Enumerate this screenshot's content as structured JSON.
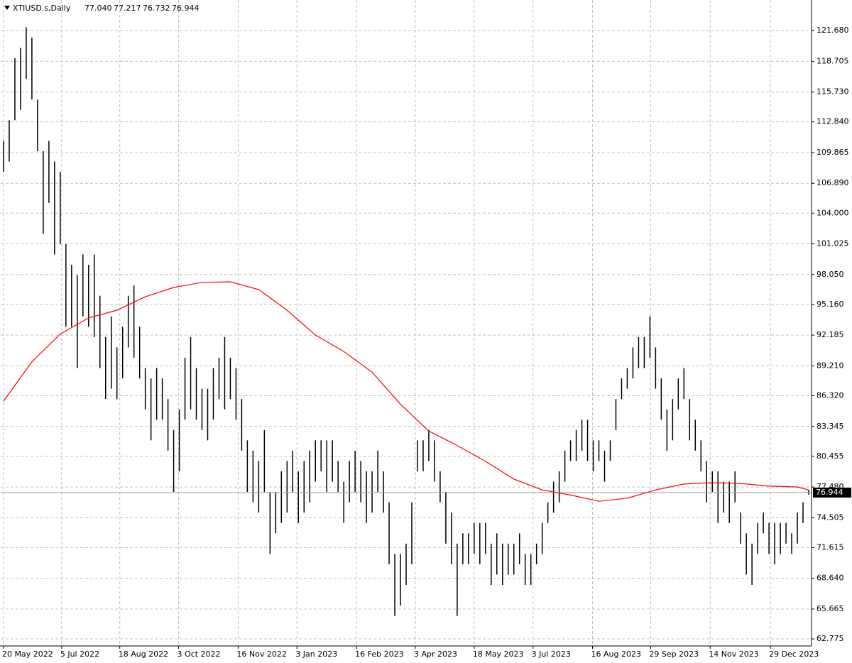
{
  "chart_data": {
    "type": "hl",
    "title": "XTIUSD.s,Daily",
    "quote_labels": [
      "77.040",
      "77.217",
      "76.732",
      "76.944"
    ],
    "bar_color": "#000000",
    "high": [
      111,
      113,
      119,
      120,
      122,
      121,
      115,
      110,
      111,
      109,
      108,
      101,
      99,
      98,
      100,
      99,
      100,
      96,
      92,
      94,
      91,
      93,
      96,
      97,
      93,
      89,
      88,
      89,
      88,
      86,
      83,
      85,
      90,
      92,
      89,
      87,
      87,
      89,
      90,
      92,
      90,
      89,
      86,
      82,
      81,
      80,
      83,
      77,
      77,
      79,
      80,
      81,
      79,
      80,
      81,
      82,
      82,
      82,
      82,
      80,
      78,
      80,
      81,
      80,
      79,
      79,
      81,
      79,
      76,
      71,
      71,
      72,
      76,
      82,
      82,
      83,
      82,
      79,
      77,
      75,
      72,
      73,
      73,
      74,
      74,
      74,
      72,
      73,
      72,
      72,
      72,
      73,
      71,
      71,
      72,
      74,
      76,
      78,
      79,
      81,
      82,
      83,
      84,
      84,
      82,
      82,
      81,
      82,
      86,
      88,
      89,
      91,
      92,
      92,
      94,
      91,
      88,
      85,
      86,
      88,
      89,
      86,
      84,
      82,
      80,
      79,
      79,
      78,
      78,
      79,
      75,
      73,
      72,
      74,
      75,
      74,
      74,
      74,
      74,
      73,
      75,
      76,
      77.217
    ],
    "low": [
      108,
      109,
      113,
      114,
      117,
      115,
      110,
      102,
      105,
      100,
      101,
      93,
      93,
      89,
      94,
      93,
      92,
      89,
      86,
      87,
      86,
      88,
      91,
      90,
      88,
      85,
      82,
      84,
      84,
      81,
      77,
      79,
      84,
      85,
      84,
      83,
      82,
      84,
      86,
      85,
      86,
      84,
      81,
      77,
      76,
      75,
      77,
      71,
      73,
      74,
      75,
      77,
      74,
      75,
      76,
      78,
      79,
      77,
      78,
      77,
      74,
      76,
      77,
      76,
      74,
      75,
      77,
      75,
      70,
      65,
      66,
      68,
      70,
      79,
      79,
      80,
      78,
      76,
      72,
      70,
      65,
      70,
      70,
      71,
      70,
      71,
      68,
      69,
      68,
      69,
      69,
      70,
      68,
      68,
      70,
      71,
      74,
      75,
      76,
      78,
      80,
      80,
      81,
      80,
      79,
      80,
      78,
      80,
      83,
      86,
      87,
      88,
      89,
      89,
      90,
      87,
      84,
      81,
      82,
      85,
      86,
      82,
      81,
      79,
      76,
      77,
      74,
      75,
      74,
      76,
      72,
      69,
      68,
      71,
      73,
      71,
      70,
      71,
      72,
      71,
      72,
      74,
      76.732
    ],
    "moving_average": {
      "color": "#ff0000",
      "x": [
        0,
        5,
        10,
        15,
        20,
        25,
        30,
        35,
        40,
        45,
        50,
        55,
        60,
        65,
        70,
        75,
        80,
        85,
        90,
        95,
        100,
        105,
        110,
        115,
        120,
        125,
        130,
        135,
        140,
        142
      ],
      "values": [
        85.8,
        89.6,
        92.3,
        93.85,
        94.6,
        95.9,
        96.8,
        97.3,
        97.35,
        96.6,
        94.6,
        92.2,
        90.6,
        88.6,
        85.5,
        82.9,
        81.5,
        79.97,
        78.25,
        77.2,
        76.7,
        76.1,
        76.4,
        77.2,
        77.77,
        77.9,
        77.83,
        77.56,
        77.49,
        77.2
      ]
    },
    "last": {
      "value": 76.944,
      "label": "76.944"
    },
    "xlim": [
      -0.5,
      142.5
    ],
    "ylim": [
      62.09,
      124.64
    ],
    "xticks": [
      {
        "value": 0,
        "label": "20 May 2022"
      },
      {
        "value": 10.25,
        "label": "5 Jul 2022"
      },
      {
        "value": 20.5,
        "label": "18 Aug 2022"
      },
      {
        "value": 30.875,
        "label": "3 Oct 2022"
      },
      {
        "value": 41.375,
        "label": "16 Nov 2022"
      },
      {
        "value": 51.75,
        "label": "3 Jan 2023"
      },
      {
        "value": 62.25,
        "label": "16 Feb 2023"
      },
      {
        "value": 72.625,
        "label": "3 Apr 2023"
      },
      {
        "value": 83,
        "label": "18 May 2023"
      },
      {
        "value": 93.375,
        "label": "3 Jul 2023"
      },
      {
        "value": 103.875,
        "label": "16 Aug 2023"
      },
      {
        "value": 114.125,
        "label": "29 Sep 2023"
      },
      {
        "value": 124.625,
        "label": "14 Nov 2023"
      },
      {
        "value": 135.25,
        "label": "29 Dec 2023"
      }
    ],
    "yticks": [
      {
        "value": 121.68,
        "label": "121.680"
      },
      {
        "value": 118.705,
        "label": "118.705"
      },
      {
        "value": 115.73,
        "label": "115.730"
      },
      {
        "value": 112.84,
        "label": "112.840"
      },
      {
        "value": 109.865,
        "label": "109.865"
      },
      {
        "value": 106.89,
        "label": "106.890"
      },
      {
        "value": 104,
        "label": "104.000"
      },
      {
        "value": 101.025,
        "label": "101.025"
      },
      {
        "value": 98.05,
        "label": "98.050"
      },
      {
        "value": 95.16,
        "label": "95.160"
      },
      {
        "value": 92.185,
        "label": "92.185"
      },
      {
        "value": 89.21,
        "label": "89.210"
      },
      {
        "value": 86.32,
        "label": "86.320"
      },
      {
        "value": 83.345,
        "label": "83.345"
      },
      {
        "value": 80.455,
        "label": "80.455"
      },
      {
        "value": 77.48,
        "label": "77.480"
      },
      {
        "value": 74.505,
        "label": "74.505"
      },
      {
        "value": 71.615,
        "label": "71.615"
      },
      {
        "value": 68.64,
        "label": "68.640"
      },
      {
        "value": 65.665,
        "label": "65.665"
      },
      {
        "value": 62.775,
        "label": "62.775"
      }
    ],
    "grid": true
  }
}
